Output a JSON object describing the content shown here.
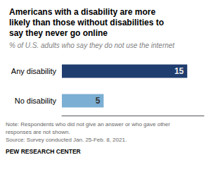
{
  "chart_data": {
    "type": "bar",
    "orientation": "horizontal",
    "title": "Americans with a disability are more\nlikely than those without disabilities to\nsay they never go online",
    "subtitle": "% of U.S. adults who say they do not use the internet",
    "categories": [
      "Any disability",
      "No disability"
    ],
    "values": [
      15,
      5
    ],
    "colors": [
      "#1f3d6e",
      "#7bafd4"
    ],
    "xlim": [
      0,
      17
    ],
    "xticks": [],
    "tick_labels": "y",
    "grid": false,
    "data_labels": true,
    "annotations": [
      "Note: Respondents who did not give an answer or who gave other",
      "responses are not shown.",
      "Source: Survey conducted Jan. 25-Feb. 8, 2021.",
      "PEW RESEARCH CENTER"
    ]
  }
}
